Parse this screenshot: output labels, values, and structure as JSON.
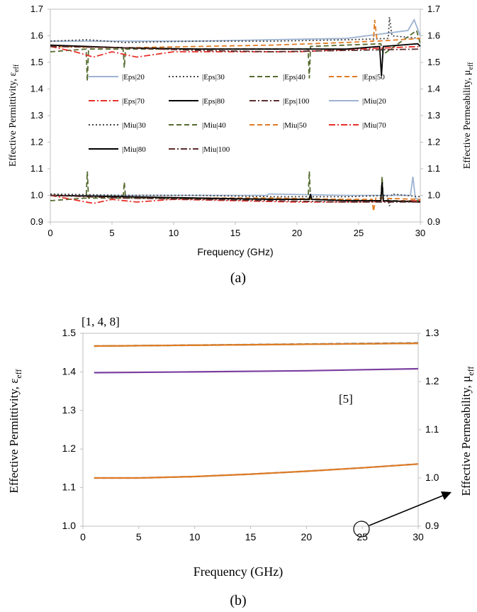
{
  "chart_data": [
    {
      "type": "line",
      "panel_label": "(a)",
      "xlabel": "Frequency (GHz)",
      "ylabel_left": "Effective Permittivity, ε",
      "ylabel_left_sub": "eff",
      "ylabel_right": "Effective Permeability, μ",
      "ylabel_right_sub": "eff",
      "xlim": [
        0,
        30
      ],
      "ylim": [
        0.9,
        1.7
      ],
      "xticks": [
        "0",
        "5",
        "10",
        "15",
        "20",
        "25",
        "30"
      ],
      "yticks": [
        "0.9",
        "1.0",
        "1.1",
        "1.2",
        "1.3",
        "1.4",
        "1.5",
        "1.6",
        "1.7"
      ],
      "y2ticks": [
        "0.9",
        "1.0",
        "1.1",
        "1.2",
        "1.3",
        "1.4",
        "1.5",
        "1.6",
        "1.7"
      ],
      "grid": false,
      "legend_position": "center",
      "series": [
        {
          "name": "|Eps|20",
          "color": "#9db3d1",
          "dash": "solid",
          "x": [
            0,
            6,
            12,
            17.6,
            24,
            29,
            29.5,
            30
          ],
          "y": [
            1.58,
            1.58,
            1.58,
            1.585,
            1.59,
            1.62,
            1.66,
            1.6
          ]
        },
        {
          "name": "|Eps|30",
          "color": "#444444",
          "dash": "dot",
          "x": [
            0,
            3,
            6,
            12,
            18,
            24,
            27.4,
            27.5,
            27.7,
            30
          ],
          "y": [
            1.58,
            1.585,
            1.575,
            1.58,
            1.58,
            1.585,
            1.59,
            1.67,
            1.6,
            1.59
          ]
        },
        {
          "name": "|Eps|40",
          "color": "#556b2f",
          "dash": "dash",
          "x": [
            0,
            2.9,
            3.0,
            3.1,
            5.9,
            6.0,
            6.1,
            20.9,
            21.0,
            21.1,
            26.8,
            27.0,
            29.7,
            30
          ],
          "y": [
            1.54,
            1.55,
            1.43,
            1.55,
            1.55,
            1.48,
            1.55,
            1.55,
            1.44,
            1.56,
            1.57,
            1.53,
            1.62,
            1.57
          ]
        },
        {
          "name": "|Eps|50",
          "color": "#e07b23",
          "dash": "dash",
          "x": [
            0,
            6,
            12,
            18,
            24,
            26.2,
            26.3,
            26.5,
            30
          ],
          "y": [
            1.56,
            1.555,
            1.56,
            1.565,
            1.575,
            1.58,
            1.66,
            1.58,
            1.59
          ]
        },
        {
          "name": "|Eps|70",
          "color": "#e8302a",
          "dash": "dashdot",
          "x": [
            0,
            2,
            3.5,
            5,
            7,
            10,
            15,
            20,
            25,
            30
          ],
          "y": [
            1.56,
            1.54,
            1.52,
            1.54,
            1.52,
            1.54,
            1.54,
            1.54,
            1.55,
            1.56
          ]
        },
        {
          "name": "|Eps|80",
          "color": "#000000",
          "dash": "solid",
          "x": [
            0,
            6,
            12,
            18,
            24,
            26.7,
            26.85,
            27.0,
            29.8,
            30
          ],
          "y": [
            1.565,
            1.555,
            1.55,
            1.55,
            1.55,
            1.56,
            1.45,
            1.56,
            1.57,
            1.56
          ]
        },
        {
          "name": "|Eps|100",
          "color": "#5c2e2e",
          "dash": "dashdot",
          "x": [
            0,
            6,
            12,
            18,
            24,
            30
          ],
          "y": [
            1.56,
            1.555,
            1.545,
            1.54,
            1.545,
            1.55
          ]
        },
        {
          "name": "|Miu|20",
          "color": "#9db3d1",
          "dash": "solid",
          "x": [
            0,
            6,
            12,
            17.6,
            17.7,
            24,
            29.2,
            29.4,
            29.6,
            30
          ],
          "y": [
            1.0,
            1.0,
            1.0,
            1.0,
            1.005,
            1.0,
            1.0,
            1.07,
            0.99,
            0.98
          ]
        },
        {
          "name": "|Miu|30",
          "color": "#444444",
          "dash": "dot",
          "x": [
            0,
            6,
            12,
            18,
            24,
            27.3,
            27.5,
            27.7,
            30
          ],
          "y": [
            1.005,
            1.0,
            1.0,
            0.995,
            0.995,
            1.0,
            0.96,
            1.005,
            0.995
          ]
        },
        {
          "name": "|Miu|40",
          "color": "#556b2f",
          "dash": "dash",
          "x": [
            0,
            2.9,
            3.0,
            3.1,
            5.9,
            6.0,
            6.1,
            20.9,
            21.0,
            21.1,
            26.8,
            26.9,
            27.0,
            30
          ],
          "y": [
            0.98,
            0.99,
            1.09,
            0.99,
            0.99,
            1.05,
            0.99,
            0.985,
            1.09,
            0.985,
            0.98,
            1.07,
            0.98,
            0.98
          ]
        },
        {
          "name": "|Miu|50",
          "color": "#e07b23",
          "dash": "dash",
          "x": [
            0,
            6,
            12,
            18,
            24,
            26.1,
            26.2,
            26.4,
            30
          ],
          "y": [
            1.0,
            0.995,
            0.99,
            0.99,
            0.985,
            0.985,
            0.94,
            0.99,
            0.985
          ]
        },
        {
          "name": "|Miu|70",
          "color": "#e8302a",
          "dash": "dashdot",
          "x": [
            0,
            3.5,
            5,
            7,
            10,
            15,
            20,
            25,
            30
          ],
          "y": [
            1.0,
            0.97,
            0.985,
            0.975,
            0.985,
            0.98,
            0.975,
            0.975,
            0.98
          ]
        },
        {
          "name": "|Miu|80",
          "color": "#000000",
          "dash": "solid",
          "x": [
            0,
            6,
            12,
            18,
            21.0,
            21.1,
            21.2,
            24,
            26.8,
            26.9,
            27.0,
            30
          ],
          "y": [
            1.0,
            0.995,
            0.99,
            0.985,
            0.985,
            1.005,
            0.985,
            0.98,
            0.98,
            1.05,
            0.98,
            0.975
          ]
        },
        {
          "name": "|Miu|100",
          "color": "#5c2e2e",
          "dash": "dashdot",
          "x": [
            0,
            6,
            12,
            18,
            24,
            30
          ],
          "y": [
            1.0,
            0.99,
            0.985,
            0.98,
            0.975,
            0.975
          ]
        }
      ]
    },
    {
      "type": "line",
      "panel_label": "(b)",
      "xlabel": "Frequency (GHz)",
      "ylabel_left": "Effective Permittivity, ε",
      "ylabel_left_sub": "eff",
      "ylabel_right": "Effective Permeability, μ",
      "ylabel_right_sub": "eff",
      "xlim": [
        0,
        30
      ],
      "ylim": [
        1.0,
        1.5
      ],
      "y2lim": [
        0.9,
        1.3
      ],
      "xticks": [
        "0",
        "5",
        "10",
        "15",
        "20",
        "25",
        "30"
      ],
      "yticks": [
        "1.0",
        "1.1",
        "1.2",
        "1.3",
        "1.4",
        "1.5"
      ],
      "y2ticks": [
        "0.9",
        "1.0",
        "1.1",
        "1.2",
        "1.3"
      ],
      "grid": false,
      "annotations": [
        "[1, 4, 8]",
        "[5]"
      ],
      "series": [
        {
          "color": "#4a6fa5",
          "dash": "dash",
          "axis": "left",
          "x": [
            1,
            30
          ],
          "y": [
            1.467,
            1.475
          ]
        },
        {
          "color": "#6b8e23",
          "dash": "dashdot",
          "axis": "left",
          "x": [
            1,
            30
          ],
          "y": [
            1.467,
            1.474
          ]
        },
        {
          "color": "#e07b23",
          "dash": "solid",
          "axis": "left",
          "x": [
            1,
            30
          ],
          "y": [
            1.467,
            1.474
          ]
        },
        {
          "color": "#7a3fa0",
          "dash": "solid",
          "axis": "left",
          "x": [
            1,
            10,
            20,
            30
          ],
          "y": [
            1.398,
            1.4,
            1.403,
            1.408
          ]
        },
        {
          "color": "#4a6fa5",
          "dash": "dash",
          "axis": "right",
          "x": [
            1,
            5,
            10,
            15,
            20,
            25,
            30
          ],
          "y": [
            1.0,
            1.0,
            1.003,
            1.008,
            1.014,
            1.021,
            1.029
          ]
        },
        {
          "color": "#e07b23",
          "dash": "solid",
          "axis": "right",
          "x": [
            1,
            5,
            10,
            15,
            20,
            25,
            30
          ],
          "y": [
            1.0,
            1.0,
            1.003,
            1.008,
            1.014,
            1.021,
            1.029
          ]
        }
      ]
    }
  ]
}
